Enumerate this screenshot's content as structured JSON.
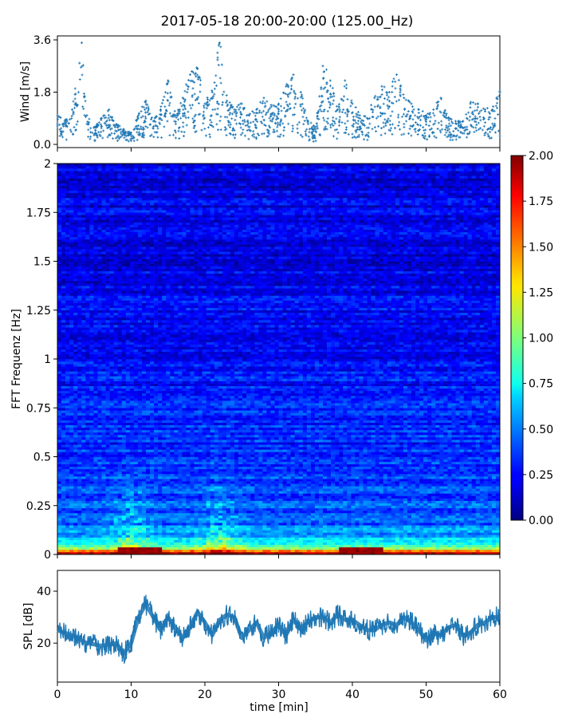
{
  "title": "2017-05-18 20:00-20:00 (125.00_Hz)",
  "chart_data": [
    {
      "type": "scatter",
      "panel": "wind",
      "ylabel": "Wind [m/s]",
      "xlabel": "",
      "xlim": [
        0,
        60
      ],
      "ylim": [
        0,
        3.6
      ],
      "yticks": [
        0.0,
        1.8,
        3.6
      ],
      "ytick_labels": [
        "0.0",
        "1.8",
        "3.6"
      ],
      "marker": "+",
      "color": "#1f77b4",
      "x": [
        0,
        1,
        2,
        3,
        3.3,
        4,
        5,
        6,
        7,
        8,
        9,
        10,
        11,
        12,
        13,
        14,
        15,
        16,
        17,
        18,
        19,
        20,
        21,
        22,
        23,
        24,
        25,
        26,
        27,
        28,
        29,
        30,
        31,
        32,
        33,
        34,
        35,
        36,
        37,
        38,
        39,
        40,
        41,
        42,
        43,
        44,
        45,
        46,
        47,
        48,
        49,
        50,
        51,
        52,
        53,
        54,
        55,
        56,
        57,
        58,
        59,
        60
      ],
      "y": [
        1.0,
        0.8,
        1.2,
        2.8,
        3.5,
        1.0,
        0.6,
        0.9,
        1.2,
        0.7,
        0.5,
        0.4,
        1.0,
        1.5,
        0.8,
        1.2,
        2.2,
        1.0,
        1.6,
        2.4,
        2.6,
        1.4,
        1.8,
        3.5,
        1.5,
        1.2,
        1.4,
        1.0,
        1.2,
        1.6,
        1.3,
        1.4,
        2.0,
        2.4,
        1.8,
        0.8,
        0.6,
        2.7,
        2.2,
        1.2,
        2.2,
        1.4,
        1.0,
        0.9,
        1.6,
        2.0,
        1.8,
        2.4,
        1.6,
        1.4,
        1.2,
        1.0,
        1.2,
        1.6,
        0.9,
        0.8,
        0.8,
        1.4,
        1.4,
        1.2,
        1.2,
        1.8
      ]
    },
    {
      "type": "heatmap",
      "panel": "spectrogram",
      "ylabel": "FFT Frequenz [Hz]",
      "xlabel": "",
      "xlim": [
        0,
        60
      ],
      "ylim": [
        0,
        2
      ],
      "yticks": [
        0,
        0.25,
        0.5,
        0.75,
        1,
        1.25,
        1.5,
        1.75,
        2
      ],
      "ytick_labels": [
        "0",
        "0.25",
        "0.5",
        "0.75",
        "1",
        "1.25",
        "1.5",
        "1.75",
        "2"
      ],
      "colormap": "jet",
      "clim": [
        0.0,
        2.0
      ],
      "colorbar_ticks": [
        0.0,
        0.25,
        0.5,
        0.75,
        1.0,
        1.25,
        1.5,
        1.75,
        2.0
      ],
      "colorbar_tick_labels": [
        "0.00",
        "0.25",
        "0.50",
        "0.75",
        "1.00",
        "1.25",
        "1.50",
        "1.75",
        "2.00"
      ],
      "base_level_by_freq": [
        [
          0.0,
          1.9
        ],
        [
          0.02,
          1.2
        ],
        [
          0.05,
          0.7
        ],
        [
          0.15,
          0.45
        ],
        [
          0.3,
          0.38
        ],
        [
          0.5,
          0.33
        ],
        [
          0.75,
          0.3
        ],
        [
          1.0,
          0.26
        ],
        [
          1.5,
          0.22
        ],
        [
          2.0,
          0.2
        ]
      ]
    },
    {
      "type": "line",
      "panel": "spl",
      "ylabel": "SPL [dB]",
      "xlabel": "time [min]",
      "xlim": [
        0,
        60
      ],
      "ylim": [
        5,
        48
      ],
      "yticks": [
        20,
        40
      ],
      "ytick_labels": [
        "20",
        "40"
      ],
      "xticks": [
        0,
        10,
        20,
        30,
        40,
        50,
        60
      ],
      "xtick_labels": [
        "0",
        "10",
        "20",
        "30",
        "40",
        "50",
        "60"
      ],
      "color": "#1f77b4",
      "x": [
        0,
        2,
        4,
        6,
        8,
        9,
        10,
        11,
        12,
        13,
        14,
        15,
        16,
        17,
        18,
        19,
        20,
        21,
        22,
        23,
        24,
        25,
        26,
        27,
        28,
        29,
        30,
        31,
        32,
        33,
        34,
        35,
        36,
        37,
        38,
        39,
        40,
        41,
        42,
        43,
        44,
        45,
        46,
        47,
        48,
        49,
        50,
        51,
        52,
        53,
        54,
        55,
        56,
        57,
        58,
        59,
        60
      ],
      "y": [
        25,
        23,
        20,
        19,
        20,
        16,
        20,
        30,
        35,
        30,
        25,
        30,
        26,
        22,
        26,
        32,
        28,
        23,
        29,
        31,
        30,
        22,
        25,
        28,
        22,
        24,
        27,
        23,
        29,
        26,
        28,
        30,
        30,
        28,
        31,
        29,
        29,
        27,
        25,
        25,
        27,
        28,
        27,
        30,
        28,
        25,
        21,
        24,
        23,
        26,
        27,
        23,
        24,
        27,
        28,
        30,
        30
      ],
      "spread": 4
    }
  ]
}
